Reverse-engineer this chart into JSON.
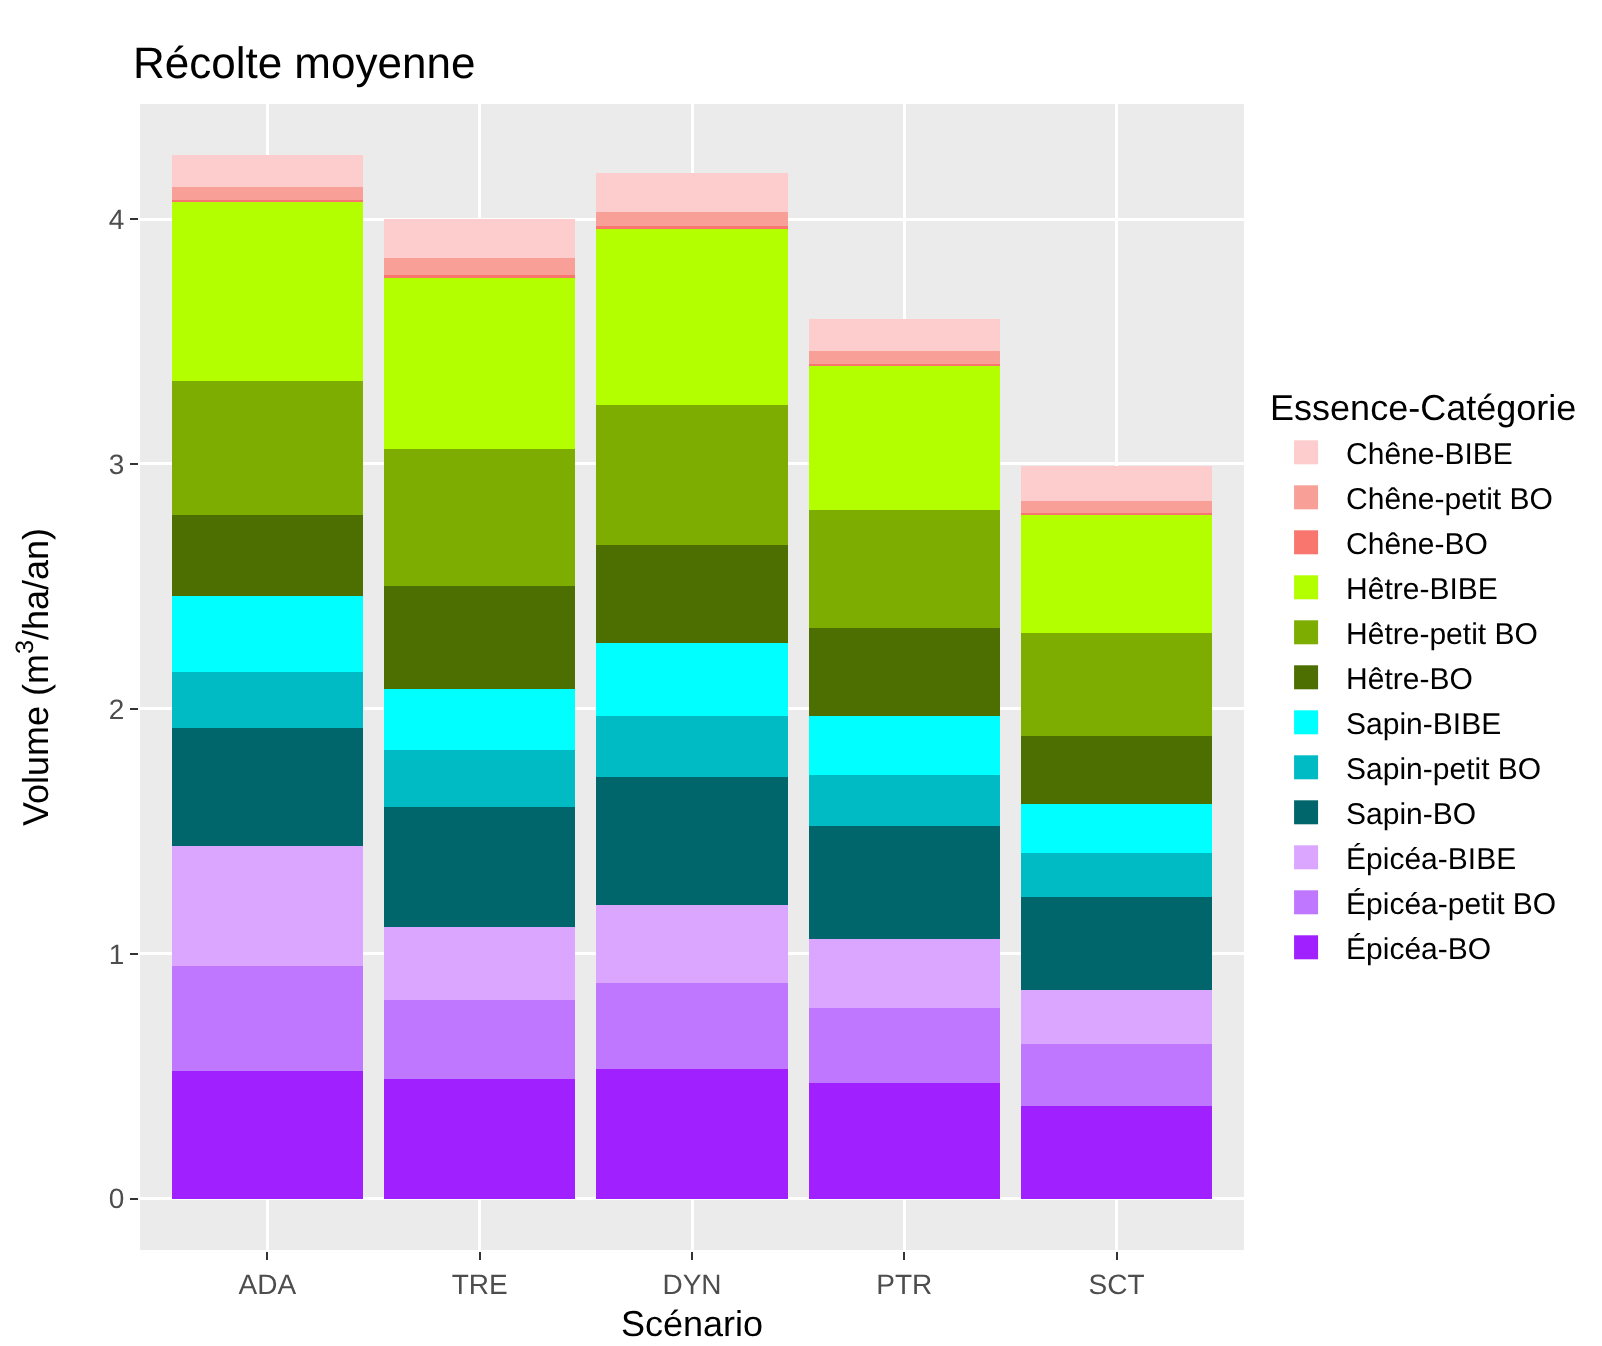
{
  "chart_data": {
    "type": "bar",
    "stacked": true,
    "title": "Récolte moyenne",
    "xlabel": "Scénario",
    "ylabel": "Volume (m$^{3}$/ha/an)",
    "legend_title": "Essence-Catégorie",
    "legend": "right",
    "grid": true,
    "categories": [
      "ADA",
      "TRE",
      "DYN",
      "PTR",
      "SCT"
    ],
    "ylim": [
      -0.21,
      4.47
    ],
    "yticks": [
      0,
      1,
      2,
      3,
      4
    ],
    "series": [
      {
        "name": "Épicéa-BO",
        "color": "#a020ff",
        "values": [
          0.52,
          0.49,
          0.53,
          0.47,
          0.38
        ]
      },
      {
        "name": "Épicéa-petit BO",
        "color": "#c077ff",
        "values": [
          0.43,
          0.32,
          0.35,
          0.31,
          0.25
        ]
      },
      {
        "name": "Épicéa-BIBE",
        "color": "#dba6ff",
        "values": [
          0.49,
          0.3,
          0.32,
          0.28,
          0.22
        ]
      },
      {
        "name": "Sapin-BO",
        "color": "#00666b",
        "values": [
          0.48,
          0.49,
          0.52,
          0.46,
          0.38
        ]
      },
      {
        "name": "Sapin-petit BO",
        "color": "#00bac4",
        "values": [
          0.23,
          0.23,
          0.25,
          0.21,
          0.18
        ]
      },
      {
        "name": "Sapin-BIBE",
        "color": "#00ffff",
        "values": [
          0.31,
          0.25,
          0.3,
          0.24,
          0.2
        ]
      },
      {
        "name": "Hêtre-BO",
        "color": "#4d6e00",
        "values": [
          0.33,
          0.42,
          0.4,
          0.36,
          0.28
        ]
      },
      {
        "name": "Hêtre-petit BO",
        "color": "#7cad00",
        "values": [
          0.55,
          0.56,
          0.57,
          0.48,
          0.42
        ]
      },
      {
        "name": "Hêtre-BIBE",
        "color": "#b3ff00",
        "values": [
          0.73,
          0.7,
          0.72,
          0.59,
          0.48
        ]
      },
      {
        "name": "Chêne-BO",
        "color": "#f8766d",
        "values": [
          0.01,
          0.01,
          0.01,
          0.01,
          0.01
        ]
      },
      {
        "name": "Chêne-petit BO",
        "color": "#f8a097",
        "values": [
          0.05,
          0.07,
          0.06,
          0.05,
          0.05
        ]
      },
      {
        "name": "Chêne-BIBE",
        "color": "#fdcccc",
        "values": [
          0.13,
          0.16,
          0.16,
          0.13,
          0.14
        ]
      }
    ]
  }
}
